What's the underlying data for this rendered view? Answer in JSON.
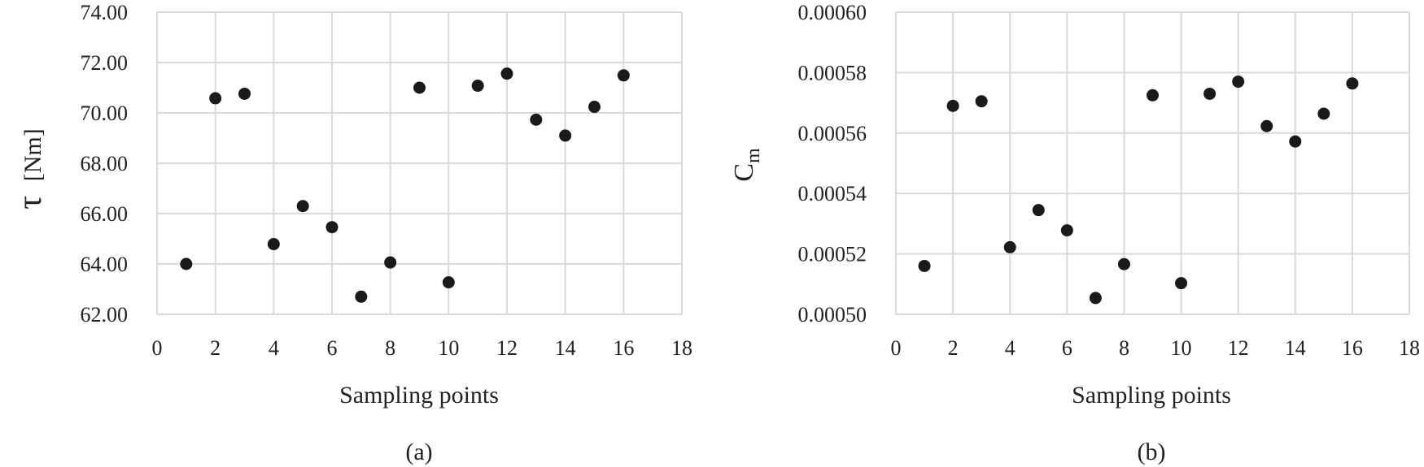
{
  "chart_data": [
    {
      "type": "scatter",
      "panel_label": "(a)",
      "xlabel": "Sampling points",
      "ylabel": "τ",
      "ylabel_unit": "[Nm]",
      "xlim": [
        0,
        18
      ],
      "ylim": [
        62,
        74
      ],
      "xticks": [
        "0",
        "2",
        "4",
        "6",
        "8",
        "10",
        "12",
        "14",
        "16",
        "18"
      ],
      "yticks": [
        "62.00",
        "64.00",
        "66.00",
        "68.00",
        "70.00",
        "72.00",
        "74.00"
      ],
      "grid": true,
      "series": [
        {
          "x": [
            1,
            2,
            3,
            4,
            5,
            6,
            7,
            8,
            9,
            10,
            11,
            12,
            13,
            14,
            15,
            16
          ],
          "y": [
            64.0,
            70.58,
            70.76,
            64.79,
            66.3,
            65.46,
            62.7,
            64.06,
            71.0,
            63.27,
            71.08,
            71.56,
            69.73,
            69.1,
            70.24,
            71.49
          ]
        }
      ]
    },
    {
      "type": "scatter",
      "panel_label": "(b)",
      "xlabel": "Sampling points",
      "ylabel": "C",
      "ylabel_sub": "m",
      "xlim": [
        0,
        18
      ],
      "ylim": [
        0.0005,
        0.0006
      ],
      "xticks": [
        "0",
        "2",
        "4",
        "6",
        "8",
        "10",
        "12",
        "14",
        "16",
        "18"
      ],
      "yticks": [
        "0.00050",
        "0.00052",
        "0.00054",
        "0.00056",
        "0.00058",
        "0.00060"
      ],
      "grid": true,
      "series": [
        {
          "x": [
            1,
            2,
            3,
            4,
            5,
            6,
            7,
            8,
            9,
            10,
            11,
            12,
            13,
            14,
            15,
            16
          ],
          "y": [
            0.000516,
            0.000569,
            0.0005705,
            0.0005222,
            0.0005345,
            0.0005278,
            0.0005054,
            0.0005166,
            0.0005725,
            0.0005103,
            0.000573,
            0.000577,
            0.0005623,
            0.0005572,
            0.0005664,
            0.0005764
          ]
        }
      ]
    }
  ]
}
